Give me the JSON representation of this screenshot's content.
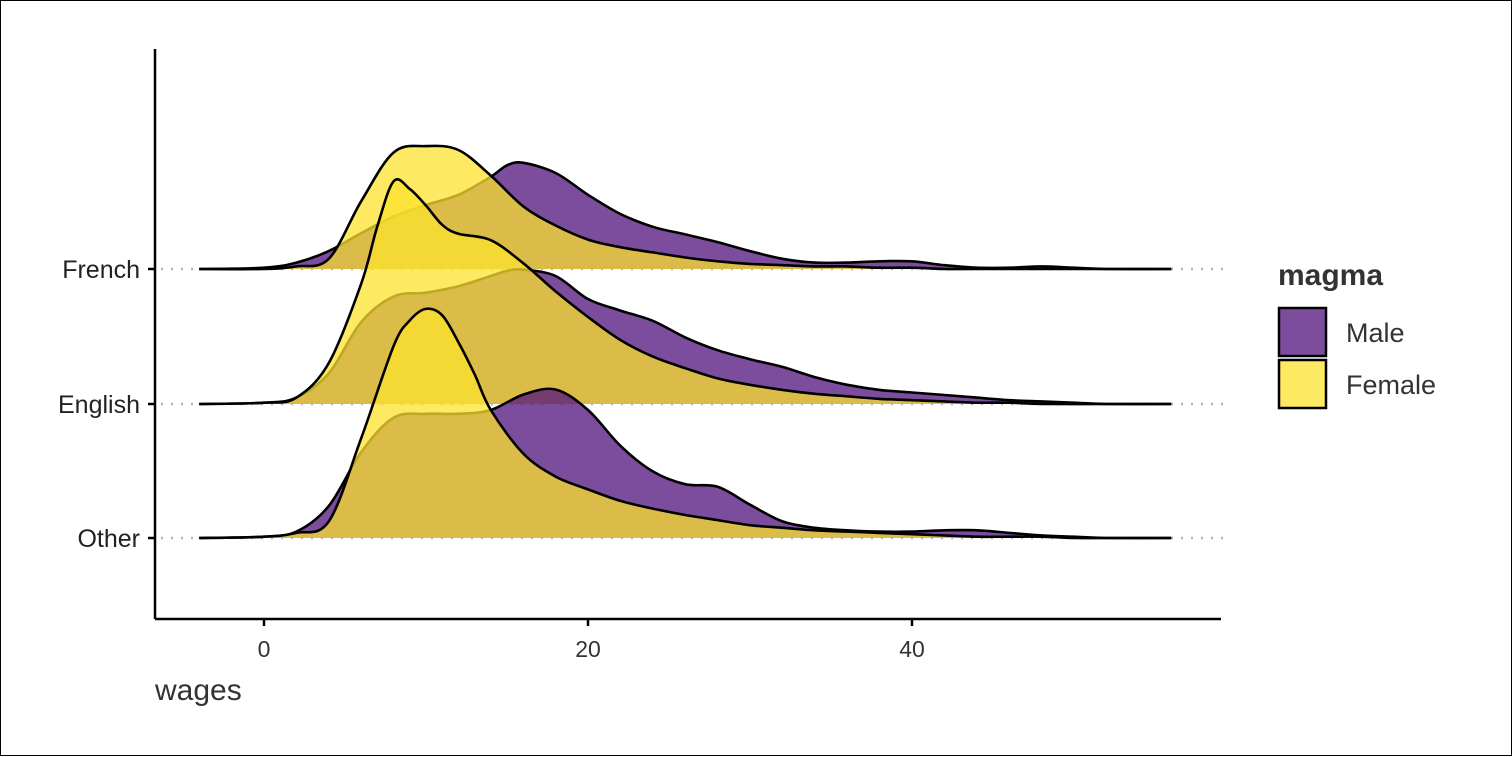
{
  "chart_data": {
    "type": "ridgeline",
    "xlabel": "wages",
    "ylabel": "",
    "xlim": [
      -7,
      59
    ],
    "x_ticks": [
      0,
      20,
      40
    ],
    "x_tick_labels": [
      "0",
      "20",
      "40"
    ],
    "categories": [
      "French",
      "English",
      "Other"
    ],
    "legend": {
      "title": "magma",
      "position": "right",
      "items": [
        {
          "name": "Male",
          "color": "#51127C"
        },
        {
          "name": "Female",
          "color": "#FCE22E"
        }
      ]
    },
    "grid": false,
    "fill_opacity": 0.75,
    "series": [
      {
        "name": "Male",
        "color": "#51127C",
        "ridges": {
          "French": {
            "x": [
              -4,
              0,
              2,
              4,
              6,
              8,
              10,
              12,
              14,
              15,
              16,
              18,
              20,
              22,
              24,
              26,
              28,
              30,
              32,
              34,
              36,
              38,
              40,
              42,
              44,
              46,
              48,
              50,
              52,
              56
            ],
            "y": [
              0,
              0.01,
              0.05,
              0.14,
              0.28,
              0.41,
              0.5,
              0.58,
              0.72,
              0.81,
              0.83,
              0.75,
              0.58,
              0.43,
              0.33,
              0.27,
              0.21,
              0.14,
              0.08,
              0.05,
              0.05,
              0.06,
              0.06,
              0.03,
              0.01,
              0.01,
              0.02,
              0.01,
              0,
              0
            ]
          },
          "English": {
            "x": [
              -4,
              0,
              2,
              4,
              6,
              8,
              10,
              12,
              14,
              15,
              16,
              18,
              20,
              22,
              24,
              26,
              28,
              30,
              32,
              34,
              36,
              38,
              40,
              42,
              44,
              46,
              48,
              50,
              52,
              56
            ],
            "y": [
              0,
              0.01,
              0.05,
              0.24,
              0.64,
              0.84,
              0.87,
              0.92,
              1.0,
              1.04,
              1.05,
              1.0,
              0.82,
              0.73,
              0.65,
              0.52,
              0.42,
              0.35,
              0.29,
              0.21,
              0.15,
              0.11,
              0.09,
              0.07,
              0.05,
              0.03,
              0.02,
              0.01,
              0,
              0
            ]
          },
          "Other": {
            "x": [
              -4,
              0,
              2,
              4,
              6,
              8,
              10,
              12,
              14,
              16,
              18,
              20,
              22,
              24,
              26,
              28,
              30,
              32,
              34,
              36,
              38,
              40,
              42,
              44,
              46,
              48,
              50,
              52,
              56
            ],
            "y": [
              0,
              0.01,
              0.05,
              0.25,
              0.67,
              0.94,
              0.97,
              0.97,
              1.0,
              1.12,
              1.16,
              1.0,
              0.72,
              0.52,
              0.42,
              0.4,
              0.26,
              0.13,
              0.08,
              0.06,
              0.05,
              0.05,
              0.06,
              0.06,
              0.04,
              0.02,
              0.01,
              0,
              0
            ]
          }
        }
      },
      {
        "name": "Female",
        "color": "#FCE22E",
        "ridges": {
          "French": {
            "x": [
              -4,
              0,
              2,
              4,
              6,
              8,
              10,
              12,
              14,
              16,
              18,
              20,
              22,
              24,
              26,
              28,
              30,
              32,
              34,
              36,
              38,
              40,
              42,
              44,
              56
            ],
            "y": [
              0,
              0,
              0.02,
              0.08,
              0.53,
              0.91,
              0.96,
              0.93,
              0.73,
              0.49,
              0.34,
              0.23,
              0.17,
              0.13,
              0.09,
              0.06,
              0.04,
              0.03,
              0.02,
              0.02,
              0.01,
              0.01,
              0,
              0,
              0
            ]
          },
          "English": {
            "x": [
              -4,
              0,
              2,
              4,
              6,
              7,
              8,
              9,
              10,
              11,
              12,
              14,
              16,
              18,
              20,
              22,
              24,
              26,
              28,
              30,
              32,
              34,
              36,
              38,
              40,
              42,
              44,
              46,
              48,
              52,
              56
            ],
            "y": [
              0,
              0.01,
              0.05,
              0.32,
              0.94,
              1.39,
              1.74,
              1.68,
              1.55,
              1.4,
              1.33,
              1.28,
              1.1,
              0.88,
              0.68,
              0.5,
              0.37,
              0.28,
              0.2,
              0.15,
              0.11,
              0.08,
              0.06,
              0.04,
              0.03,
              0.02,
              0.01,
              0.01,
              0,
              0,
              0
            ]
          },
          "Other": {
            "x": [
              -4,
              0,
              2,
              4,
              6,
              8,
              9,
              10,
              11,
              12,
              13,
              14,
              16,
              18,
              20,
              22,
              24,
              26,
              28,
              30,
              32,
              34,
              36,
              38,
              40,
              42,
              44,
              46,
              48,
              50,
              52,
              56
            ],
            "y": [
              0,
              0.01,
              0.04,
              0.13,
              0.78,
              1.5,
              1.7,
              1.79,
              1.74,
              1.53,
              1.28,
              1.0,
              0.66,
              0.48,
              0.38,
              0.29,
              0.23,
              0.18,
              0.14,
              0.1,
              0.08,
              0.06,
              0.05,
              0.04,
              0.03,
              0.02,
              0.01,
              0.01,
              0.01,
              0,
              0,
              0
            ]
          }
        }
      }
    ]
  }
}
